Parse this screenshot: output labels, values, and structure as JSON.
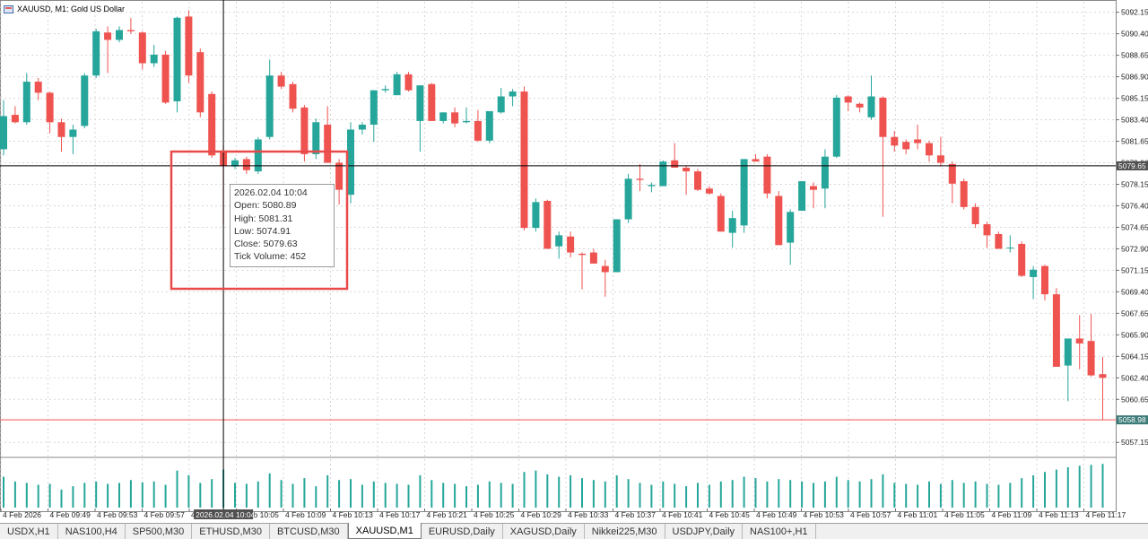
{
  "window": {
    "title": "XAUUSD, M1:  Gold US Dollar",
    "icon": "chart-window-icon"
  },
  "colors": {
    "bull": "#26a69a",
    "bear": "#ef5350",
    "grid": "#d7d7d7",
    "axis": "#6a6a6a",
    "crosshair": "#000000",
    "highlight_box": "#e84a4a",
    "price_label_bg": "#505050"
  },
  "crosshair": {
    "price_label": "5079.65",
    "time_label": "2026.02.04 10:04",
    "price": 5079.65
  },
  "current_price": {
    "label": "5058.98",
    "value": 5058.98
  },
  "tooltip": {
    "datetime": "2026.02.04 10:04",
    "open": "Open: 5080.89",
    "high": "High: 5081.31",
    "low": "Low: 5074.91",
    "close": "Close: 5079.63",
    "volume": "Tick Volume: 452"
  },
  "chart_data": {
    "type": "candlestick",
    "symbol": "XAUUSD",
    "timeframe": "M1",
    "ylim": [
      5056.0,
      5093.0
    ],
    "price_axis_ticks": [
      "5092.15",
      "5090.40",
      "5088.65",
      "5086.90",
      "5085.15",
      "5083.40",
      "5081.65",
      "5079.90",
      "5078.15",
      "5076.40",
      "5074.65",
      "5072.90",
      "5071.15",
      "5069.40",
      "5067.65",
      "5065.90",
      "5064.15",
      "5062.40",
      "5060.65",
      "5057.15"
    ],
    "time_axis_ticks": [
      "4 Feb 2026",
      "4 Feb 09:49",
      "4 Feb 09:53",
      "4 Feb 09:57",
      "4 Feb 10:01",
      "4 Feb 10:05",
      "4 Feb 10:09",
      "4 Feb 10:13",
      "4 Feb 10:17",
      "4 Feb 10:21",
      "4 Feb 10:25",
      "4 Feb 10:29",
      "4 Feb 10:33",
      "4 Feb 10:37",
      "4 Feb 10:41",
      "4 Feb 10:45",
      "4 Feb 10:49",
      "4 Feb 10:53",
      "4 Feb 10:57",
      "4 Feb 11:01",
      "4 Feb 11:05",
      "4 Feb 11:09",
      "4 Feb 11:13",
      "4 Feb 11:17"
    ],
    "candles": [
      {
        "o": 5081.0,
        "h": 5085.0,
        "l": 5080.5,
        "c": 5083.7
      },
      {
        "o": 5083.8,
        "h": 5084.5,
        "l": 5083.1,
        "c": 5083.2
      },
      {
        "o": 5083.2,
        "h": 5087.2,
        "l": 5083.0,
        "c": 5086.5
      },
      {
        "o": 5086.5,
        "h": 5086.8,
        "l": 5085.0,
        "c": 5085.6
      },
      {
        "o": 5085.6,
        "h": 5085.7,
        "l": 5082.3,
        "c": 5083.2
      },
      {
        "o": 5083.2,
        "h": 5083.5,
        "l": 5080.8,
        "c": 5082.0
      },
      {
        "o": 5082.0,
        "h": 5083.0,
        "l": 5080.6,
        "c": 5082.6
      },
      {
        "o": 5082.9,
        "h": 5087.2,
        "l": 5082.7,
        "c": 5087.0
      },
      {
        "o": 5087.0,
        "h": 5090.8,
        "l": 5086.8,
        "c": 5090.6
      },
      {
        "o": 5090.5,
        "h": 5091.0,
        "l": 5087.2,
        "c": 5089.9
      },
      {
        "o": 5089.9,
        "h": 5091.0,
        "l": 5089.7,
        "c": 5090.7
      },
      {
        "o": 5090.7,
        "h": 5091.7,
        "l": 5090.4,
        "c": 5090.6
      },
      {
        "o": 5090.5,
        "h": 5090.6,
        "l": 5087.5,
        "c": 5088.0
      },
      {
        "o": 5088.0,
        "h": 5089.5,
        "l": 5087.7,
        "c": 5088.7
      },
      {
        "o": 5088.7,
        "h": 5089.0,
        "l": 5084.7,
        "c": 5084.8
      },
      {
        "o": 5084.9,
        "h": 5091.8,
        "l": 5084.0,
        "c": 5091.7
      },
      {
        "o": 5091.8,
        "h": 5092.3,
        "l": 5086.4,
        "c": 5087.0
      },
      {
        "o": 5088.9,
        "h": 5089.2,
        "l": 5083.6,
        "c": 5084.0
      },
      {
        "o": 5085.5,
        "h": 5085.7,
        "l": 5080.3,
        "c": 5080.5
      },
      {
        "o": 5080.89,
        "h": 5081.31,
        "l": 5074.91,
        "c": 5079.63
      },
      {
        "o": 5079.6,
        "h": 5080.3,
        "l": 5079.4,
        "c": 5080.1
      },
      {
        "o": 5080.2,
        "h": 5080.4,
        "l": 5079.0,
        "c": 5079.3
      },
      {
        "o": 5079.2,
        "h": 5082.0,
        "l": 5079.0,
        "c": 5081.8
      },
      {
        "o": 5082.0,
        "h": 5088.3,
        "l": 5081.8,
        "c": 5087.0
      },
      {
        "o": 5087.0,
        "h": 5087.3,
        "l": 5085.9,
        "c": 5086.1
      },
      {
        "o": 5086.3,
        "h": 5086.5,
        "l": 5084.0,
        "c": 5084.3
      },
      {
        "o": 5084.4,
        "h": 5084.6,
        "l": 5080.0,
        "c": 5080.6
      },
      {
        "o": 5080.6,
        "h": 5083.5,
        "l": 5080.2,
        "c": 5083.2
      },
      {
        "o": 5083.0,
        "h": 5084.5,
        "l": 5079.9,
        "c": 5079.9
      },
      {
        "o": 5079.9,
        "h": 5080.2,
        "l": 5076.5,
        "c": 5077.7
      },
      {
        "o": 5077.3,
        "h": 5083.2,
        "l": 5076.6,
        "c": 5082.6
      },
      {
        "o": 5082.6,
        "h": 5083.2,
        "l": 5082.2,
        "c": 5083.0
      },
      {
        "o": 5083.0,
        "h": 5085.8,
        "l": 5081.6,
        "c": 5085.8
      },
      {
        "o": 5085.8,
        "h": 5086.2,
        "l": 5085.6,
        "c": 5085.9
      },
      {
        "o": 5085.4,
        "h": 5087.3,
        "l": 5085.4,
        "c": 5087.1
      },
      {
        "o": 5087.1,
        "h": 5087.3,
        "l": 5085.7,
        "c": 5085.8
      },
      {
        "o": 5083.3,
        "h": 5086.2,
        "l": 5080.8,
        "c": 5086.2
      },
      {
        "o": 5086.3,
        "h": 5086.4,
        "l": 5083.3,
        "c": 5083.3
      },
      {
        "o": 5083.3,
        "h": 5084.0,
        "l": 5083.1,
        "c": 5084.0
      },
      {
        "o": 5084.0,
        "h": 5084.4,
        "l": 5082.8,
        "c": 5083.1
      },
      {
        "o": 5083.2,
        "h": 5084.4,
        "l": 5083.1,
        "c": 5083.3
      },
      {
        "o": 5083.3,
        "h": 5084.2,
        "l": 5081.6,
        "c": 5081.7
      },
      {
        "o": 5081.7,
        "h": 5084.1,
        "l": 5081.5,
        "c": 5084.1
      },
      {
        "o": 5084.0,
        "h": 5086.0,
        "l": 5083.9,
        "c": 5085.3
      },
      {
        "o": 5085.3,
        "h": 5085.9,
        "l": 5084.5,
        "c": 5085.7
      },
      {
        "o": 5085.7,
        "h": 5086.1,
        "l": 5074.4,
        "c": 5074.6
      },
      {
        "o": 5074.6,
        "h": 5077.0,
        "l": 5074.3,
        "c": 5076.7
      },
      {
        "o": 5076.8,
        "h": 5076.9,
        "l": 5072.9,
        "c": 5072.9
      },
      {
        "o": 5073.1,
        "h": 5074.3,
        "l": 5072.1,
        "c": 5074.0
      },
      {
        "o": 5073.9,
        "h": 5074.3,
        "l": 5072.2,
        "c": 5072.6
      },
      {
        "o": 5072.5,
        "h": 5072.6,
        "l": 5069.6,
        "c": 5072.4
      },
      {
        "o": 5072.6,
        "h": 5072.9,
        "l": 5071.7,
        "c": 5071.7
      },
      {
        "o": 5071.5,
        "h": 5072.0,
        "l": 5069.0,
        "c": 5071.0
      },
      {
        "o": 5071.0,
        "h": 5075.3,
        "l": 5071.0,
        "c": 5075.3
      },
      {
        "o": 5075.3,
        "h": 5079.0,
        "l": 5075.0,
        "c": 5078.6
      },
      {
        "o": 5078.6,
        "h": 5079.8,
        "l": 5077.6,
        "c": 5078.5
      },
      {
        "o": 5078.0,
        "h": 5078.3,
        "l": 5077.5,
        "c": 5078.1
      },
      {
        "o": 5078.0,
        "h": 5080.1,
        "l": 5078.0,
        "c": 5080.0
      },
      {
        "o": 5080.1,
        "h": 5081.5,
        "l": 5079.5,
        "c": 5079.5
      },
      {
        "o": 5079.5,
        "h": 5079.7,
        "l": 5077.3,
        "c": 5079.2
      },
      {
        "o": 5079.2,
        "h": 5079.4,
        "l": 5077.6,
        "c": 5077.7
      },
      {
        "o": 5077.8,
        "h": 5078.0,
        "l": 5077.3,
        "c": 5077.4
      },
      {
        "o": 5077.2,
        "h": 5077.4,
        "l": 5074.3,
        "c": 5074.3
      },
      {
        "o": 5074.2,
        "h": 5076.0,
        "l": 5073.0,
        "c": 5075.4
      },
      {
        "o": 5074.8,
        "h": 5080.2,
        "l": 5074.2,
        "c": 5080.2
      },
      {
        "o": 5080.2,
        "h": 5080.6,
        "l": 5080.0,
        "c": 5080.0
      },
      {
        "o": 5080.4,
        "h": 5080.6,
        "l": 5077.0,
        "c": 5077.4
      },
      {
        "o": 5077.2,
        "h": 5077.6,
        "l": 5073.2,
        "c": 5073.2
      },
      {
        "o": 5073.4,
        "h": 5076.1,
        "l": 5071.6,
        "c": 5075.9
      },
      {
        "o": 5076.0,
        "h": 5078.4,
        "l": 5076.0,
        "c": 5078.4
      },
      {
        "o": 5078.0,
        "h": 5078.3,
        "l": 5076.2,
        "c": 5077.7
      },
      {
        "o": 5077.8,
        "h": 5081.0,
        "l": 5076.2,
        "c": 5080.4
      },
      {
        "o": 5080.4,
        "h": 5085.4,
        "l": 5080.3,
        "c": 5085.2
      },
      {
        "o": 5085.3,
        "h": 5085.4,
        "l": 5084.1,
        "c": 5084.8
      },
      {
        "o": 5084.7,
        "h": 5084.8,
        "l": 5084.0,
        "c": 5084.4
      },
      {
        "o": 5083.6,
        "h": 5087.0,
        "l": 5083.4,
        "c": 5085.3
      },
      {
        "o": 5085.2,
        "h": 5085.3,
        "l": 5075.5,
        "c": 5082.0
      },
      {
        "o": 5082.0,
        "h": 5082.5,
        "l": 5080.8,
        "c": 5081.3
      },
      {
        "o": 5081.6,
        "h": 5081.8,
        "l": 5080.6,
        "c": 5081.0
      },
      {
        "o": 5081.8,
        "h": 5083.0,
        "l": 5081.0,
        "c": 5081.5
      },
      {
        "o": 5081.5,
        "h": 5081.7,
        "l": 5080.0,
        "c": 5080.5
      },
      {
        "o": 5080.5,
        "h": 5082.0,
        "l": 5079.6,
        "c": 5079.9
      },
      {
        "o": 5079.8,
        "h": 5080.0,
        "l": 5076.6,
        "c": 5078.2
      },
      {
        "o": 5078.4,
        "h": 5078.6,
        "l": 5076.1,
        "c": 5076.3
      },
      {
        "o": 5076.3,
        "h": 5076.6,
        "l": 5074.6,
        "c": 5074.9
      },
      {
        "o": 5074.9,
        "h": 5075.1,
        "l": 5073.0,
        "c": 5074.0
      },
      {
        "o": 5074.1,
        "h": 5074.3,
        "l": 5072.9,
        "c": 5072.9
      },
      {
        "o": 5073.0,
        "h": 5074.0,
        "l": 5072.6,
        "c": 5073.0
      },
      {
        "o": 5073.3,
        "h": 5073.5,
        "l": 5070.6,
        "c": 5070.7
      },
      {
        "o": 5070.6,
        "h": 5071.5,
        "l": 5068.8,
        "c": 5071.2
      },
      {
        "o": 5071.5,
        "h": 5071.6,
        "l": 5068.7,
        "c": 5069.2
      },
      {
        "o": 5069.2,
        "h": 5069.7,
        "l": 5063.3,
        "c": 5063.3
      },
      {
        "o": 5063.4,
        "h": 5065.6,
        "l": 5060.5,
        "c": 5065.6
      },
      {
        "o": 5065.6,
        "h": 5067.5,
        "l": 5063.1,
        "c": 5065.2
      },
      {
        "o": 5065.4,
        "h": 5067.6,
        "l": 5062.5,
        "c": 5062.6
      },
      {
        "o": 5062.7,
        "h": 5064.1,
        "l": 5059.0,
        "c": 5062.4
      }
    ],
    "volume": [
      0.65,
      0.55,
      0.52,
      0.48,
      0.5,
      0.38,
      0.45,
      0.52,
      0.55,
      0.5,
      0.52,
      0.58,
      0.53,
      0.55,
      0.48,
      0.78,
      0.68,
      0.52,
      0.6,
      0.8,
      0.52,
      0.5,
      0.55,
      0.72,
      0.58,
      0.5,
      0.62,
      0.45,
      0.68,
      0.58,
      0.6,
      0.48,
      0.55,
      0.52,
      0.5,
      0.48,
      0.68,
      0.58,
      0.52,
      0.5,
      0.45,
      0.48,
      0.55,
      0.52,
      0.5,
      0.75,
      0.78,
      0.7,
      0.65,
      0.68,
      0.62,
      0.58,
      0.55,
      0.68,
      0.6,
      0.52,
      0.48,
      0.55,
      0.5,
      0.45,
      0.52,
      0.48,
      0.55,
      0.58,
      0.65,
      0.62,
      0.55,
      0.6,
      0.58,
      0.55,
      0.52,
      0.55,
      0.65,
      0.58,
      0.55,
      0.6,
      0.7,
      0.52,
      0.5,
      0.48,
      0.55,
      0.5,
      0.58,
      0.52,
      0.55,
      0.5,
      0.48,
      0.52,
      0.62,
      0.68,
      0.75,
      0.8,
      0.85,
      0.88,
      0.9,
      0.92
    ]
  },
  "tabs": [
    {
      "label": "USDX,H1",
      "active": false
    },
    {
      "label": "NAS100,H4",
      "active": false
    },
    {
      "label": "SP500,M30",
      "active": false
    },
    {
      "label": "ETHUSD,M30",
      "active": false
    },
    {
      "label": "BTCUSD,M30",
      "active": false
    },
    {
      "label": "XAUUSD,M1",
      "active": true
    },
    {
      "label": "EURUSD,Daily",
      "active": false
    },
    {
      "label": "XAGUSD,Daily",
      "active": false
    },
    {
      "label": "Nikkei225,M30",
      "active": false
    },
    {
      "label": "USDJPY,Daily",
      "active": false
    },
    {
      "label": "NAS100+,H1",
      "active": false
    }
  ]
}
